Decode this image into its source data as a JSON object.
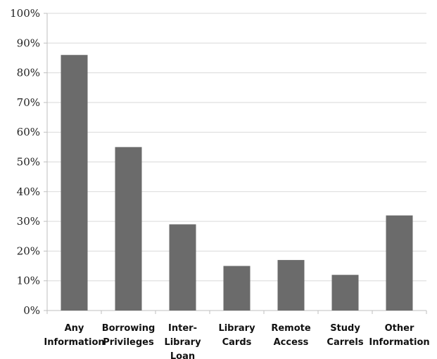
{
  "chart_data": {
    "type": "bar",
    "title": "",
    "xlabel": "",
    "ylabel": "",
    "categories": [
      [
        "Any",
        "Information"
      ],
      [
        "Borrowing",
        "Privileges"
      ],
      [
        "Inter-",
        "Library",
        "Loan"
      ],
      [
        "Library",
        "Cards"
      ],
      [
        "Remote",
        "Access"
      ],
      [
        "Study",
        "Carrels"
      ],
      [
        "Other",
        "Information"
      ]
    ],
    "values": [
      86,
      55,
      29,
      15,
      17,
      12,
      32
    ],
    "ylim": [
      0,
      100
    ],
    "yticks": [
      "0%",
      "10%",
      "20%",
      "30%",
      "40%",
      "50%",
      "60%",
      "70%",
      "80%",
      "90%",
      "100%"
    ],
    "grid": true,
    "legend": "none",
    "colors": {
      "bar": "#6b6b6b",
      "grid": "#d9d9d9",
      "axis": "#bfbfbf"
    }
  }
}
